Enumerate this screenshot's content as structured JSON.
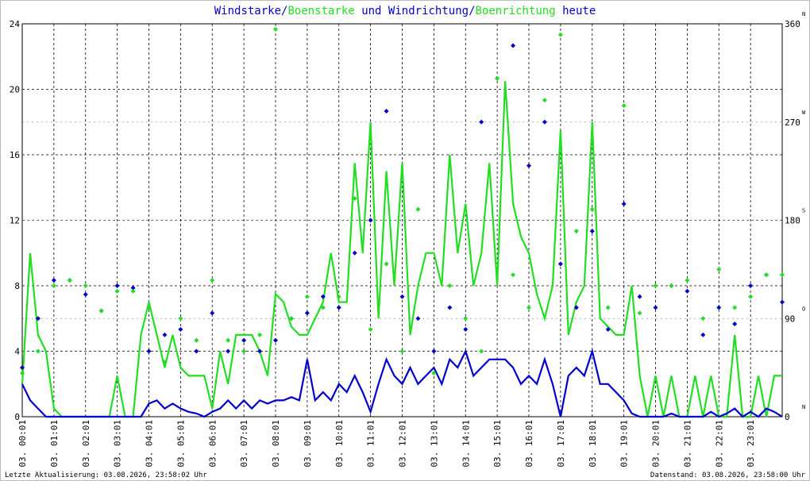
{
  "chart_data": {
    "type": "line",
    "title": [
      {
        "text": "Windstarke",
        "color": "#0000cc"
      },
      {
        "text": "/",
        "color": "#0000cc"
      },
      {
        "text": "Boenstarke",
        "color": "#22dd22"
      },
      {
        "text": " und ",
        "color": "#0000cc"
      },
      {
        "text": "Windrichtung",
        "color": "#0000cc"
      },
      {
        "text": "/",
        "color": "#0000cc"
      },
      {
        "text": "Boenrichtung",
        "color": "#22dd22"
      },
      {
        "text": " heute",
        "color": "#0000cc"
      }
    ],
    "footer_left": "Letzte Aktualisierung: 03.08.2026, 23:58:02 Uhr",
    "footer_right": "Datenstand: 03.08.2026, 23:58:00 Uhr",
    "xlim": [
      0,
      24
    ],
    "xticks": [
      {
        "value": 0,
        "label": "03. 00:01"
      },
      {
        "value": 1,
        "label": "03. 01:01"
      },
      {
        "value": 2,
        "label": "03. 02:01"
      },
      {
        "value": 3,
        "label": "03. 03:01"
      },
      {
        "value": 4,
        "label": "03. 04:01"
      },
      {
        "value": 5,
        "label": "03. 05:01"
      },
      {
        "value": 6,
        "label": "03. 06:01"
      },
      {
        "value": 7,
        "label": "03. 07:01"
      },
      {
        "value": 8,
        "label": "03. 08:01"
      },
      {
        "value": 9,
        "label": "03. 09:01"
      },
      {
        "value": 10,
        "label": "03. 10:01"
      },
      {
        "value": 11,
        "label": "03. 11:01"
      },
      {
        "value": 12,
        "label": "03. 12:01"
      },
      {
        "value": 13,
        "label": "03. 13:01"
      },
      {
        "value": 14,
        "label": "03. 14:01"
      },
      {
        "value": 15,
        "label": "03. 15:01"
      },
      {
        "value": 16,
        "label": "03. 16:01"
      },
      {
        "value": 17,
        "label": "03. 17:01"
      },
      {
        "value": 18,
        "label": "03. 18:01"
      },
      {
        "value": 19,
        "label": "03. 19:01"
      },
      {
        "value": 20,
        "label": "03. 20:01"
      },
      {
        "value": 21,
        "label": "03. 21:01"
      },
      {
        "value": 22,
        "label": "03. 22:01"
      },
      {
        "value": 23,
        "label": "03. 23:01"
      }
    ],
    "ylim": [
      0,
      24
    ],
    "yticks": [
      0,
      4,
      8,
      12,
      16,
      20,
      24
    ],
    "y2lim": [
      0,
      360
    ],
    "y2ticks": [
      0,
      90,
      180,
      270,
      360
    ],
    "y2_direction_labels": [
      "N",
      "O",
      "S",
      "W",
      "N"
    ],
    "grid": true,
    "x": [
      0,
      0.25,
      0.5,
      0.75,
      1,
      1.25,
      1.5,
      1.75,
      2,
      2.25,
      2.5,
      2.75,
      3,
      3.25,
      3.5,
      3.75,
      4,
      4.25,
      4.5,
      4.75,
      5,
      5.25,
      5.5,
      5.75,
      6,
      6.25,
      6.5,
      6.75,
      7,
      7.25,
      7.5,
      7.75,
      8,
      8.25,
      8.5,
      8.75,
      9,
      9.25,
      9.5,
      9.75,
      10,
      10.25,
      10.5,
      10.75,
      11,
      11.25,
      11.5,
      11.75,
      12,
      12.25,
      12.5,
      12.75,
      13,
      13.25,
      13.5,
      13.75,
      14,
      14.25,
      14.5,
      14.75,
      15,
      15.25,
      15.5,
      15.75,
      16,
      16.25,
      16.5,
      16.75,
      17,
      17.25,
      17.5,
      17.75,
      18,
      18.25,
      18.5,
      18.75,
      19,
      19.25,
      19.5,
      19.75,
      20,
      20.25,
      20.5,
      20.75,
      21,
      21.25,
      21.5,
      21.75,
      22,
      22.25,
      22.5,
      22.75,
      23,
      23.25,
      23.5,
      23.75,
      24
    ],
    "series": [
      {
        "name": "Boenstarke",
        "type": "line",
        "color": "#22dd22",
        "values": [
          2,
          10,
          5,
          4,
          0.5,
          0,
          0,
          0,
          0,
          0,
          0,
          0,
          2.5,
          0,
          0,
          5,
          7,
          5,
          3,
          5,
          3,
          2.5,
          2.5,
          2.5,
          0.5,
          4,
          2,
          5,
          5,
          5,
          4,
          2.5,
          7.5,
          7,
          5.5,
          5,
          5,
          6,
          7,
          10,
          7,
          7,
          15.5,
          10,
          18,
          6,
          15,
          8,
          15.5,
          5,
          8,
          10,
          10,
          8,
          16,
          10,
          13,
          8,
          10,
          15.5,
          8,
          20.5,
          13,
          11,
          10,
          7.5,
          6,
          8,
          17.5,
          5,
          7,
          8,
          18,
          6,
          5.5,
          5,
          5,
          8,
          2.5,
          0,
          2.5,
          0,
          2.5,
          0,
          0,
          2.5,
          0,
          2.5,
          0,
          0,
          5,
          0,
          0,
          2.5,
          0,
          2.5,
          2.5
        ]
      },
      {
        "name": "Windstarke",
        "type": "line",
        "color": "#0000cc",
        "values": [
          2,
          1,
          0.5,
          0,
          0,
          0,
          0,
          0,
          0,
          0,
          0,
          0,
          0,
          0,
          0,
          0,
          0.8,
          1,
          0.5,
          0.8,
          0.5,
          0.3,
          0.2,
          0,
          0.3,
          0.5,
          1,
          0.5,
          1,
          0.5,
          1,
          0.8,
          1,
          1,
          1.2,
          1,
          3.5,
          1,
          1.5,
          1,
          2,
          1.5,
          2.5,
          1.5,
          0.3,
          2,
          3.5,
          2.5,
          2,
          3,
          2,
          2.5,
          3,
          2,
          3.5,
          3,
          4,
          2.5,
          3,
          3.5,
          3.5,
          3.5,
          3,
          2,
          2.5,
          2,
          3.5,
          2,
          0,
          2.5,
          3,
          2.5,
          4,
          2,
          2,
          1.5,
          1,
          0.2,
          0,
          0,
          0,
          0,
          0.2,
          0,
          0,
          0,
          0,
          0.3,
          0,
          0.2,
          0.5,
          0,
          0.3,
          0,
          0.5,
          0.3,
          0
        ]
      },
      {
        "name": "Windrichtung",
        "type": "scatter",
        "axis": "y2",
        "color": "#0000cc",
        "x": [
          0,
          0.5,
          1,
          1.5,
          2,
          2.5,
          3,
          3.5,
          4,
          4.5,
          5,
          5.5,
          6,
          6.5,
          7,
          7.5,
          8,
          8.5,
          9,
          9.5,
          10,
          10.5,
          11,
          11.5,
          12,
          12.5,
          13,
          13.5,
          14,
          14.5,
          15,
          15.5,
          16,
          16.5,
          17,
          17.5,
          18,
          18.5,
          19,
          19.5,
          20,
          20.5,
          21,
          21.5,
          22,
          22.5,
          23,
          23.5,
          24
        ],
        "values": [
          45,
          90,
          125,
          125,
          112,
          97,
          120,
          118,
          60,
          75,
          80,
          60,
          95,
          60,
          70,
          60,
          70,
          90,
          95,
          110,
          100,
          150,
          180,
          280,
          110,
          90,
          60,
          100,
          80,
          270,
          310,
          340,
          230,
          270,
          140,
          100,
          170,
          80,
          195,
          110,
          100,
          120,
          115,
          75,
          100,
          85,
          120,
          130,
          105
        ]
      },
      {
        "name": "Boenrichtung",
        "type": "scatter",
        "axis": "y2",
        "color": "#22dd22",
        "x": [
          0,
          0.5,
          1,
          1.5,
          2,
          2.5,
          3,
          3.5,
          4,
          4.5,
          5,
          5.5,
          6,
          6.5,
          7,
          7.5,
          8,
          8.5,
          9,
          9.5,
          10,
          10.5,
          11,
          11.5,
          12,
          12.5,
          13,
          13.5,
          14,
          14.5,
          15,
          15.5,
          16,
          16.5,
          17,
          17.5,
          18,
          18.5,
          19,
          19.5,
          20,
          20.5,
          21,
          21.5,
          22,
          22.5,
          23,
          23.5,
          24
        ],
        "values": [
          40,
          60,
          120,
          125,
          120,
          97,
          115,
          115,
          100,
          50,
          90,
          70,
          125,
          70,
          60,
          75,
          355,
          90,
          110,
          100,
          110,
          200,
          80,
          140,
          60,
          190,
          40,
          120,
          90,
          60,
          310,
          130,
          100,
          290,
          350,
          170,
          190,
          100,
          285,
          95,
          120,
          120,
          125,
          90,
          135,
          100,
          110,
          130,
          130
        ]
      }
    ]
  }
}
